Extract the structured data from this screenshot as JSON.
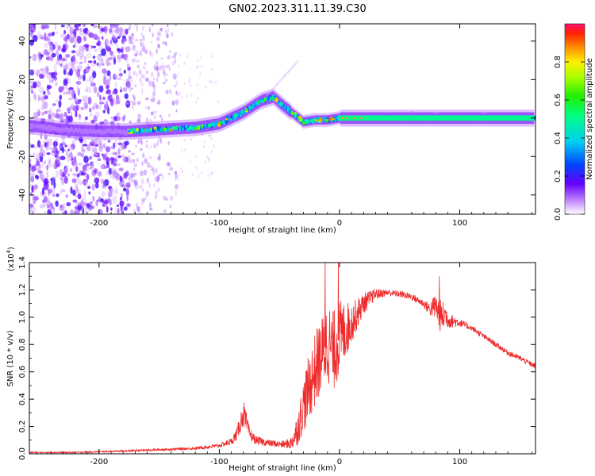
{
  "title": "GN02.2023.311.11.39.C30",
  "colors": {
    "snr_line": "#ee2a2a",
    "spectrogram_noise": "#8a3cf0",
    "signal_core": "#00e060"
  },
  "chart_data": [
    {
      "id": "spectrogram",
      "type": "heatmap",
      "xlabel": "Height of straight line (km)",
      "ylabel": "Frequency (Hz)",
      "xlim": [
        -258,
        163
      ],
      "ylim": [
        -50,
        49
      ],
      "xticks": [
        -200,
        -100,
        0,
        100
      ],
      "yticks": [
        -40,
        -20,
        0,
        20,
        40
      ],
      "grid": false,
      "colorbar": {
        "label": "Normalized spectral amplitude",
        "range": [
          0,
          1
        ],
        "ticks": [
          0.0,
          0.2,
          0.4,
          0.6,
          0.8
        ],
        "tick_labels": [
          "0.0",
          "0.2",
          "0.4",
          "0.6",
          "0.8"
        ],
        "colormap": "rainbow-purple-to-red"
      },
      "signal_ridge": {
        "x": [
          -258,
          -230,
          -200,
          -175,
          -150,
          -120,
          -100,
          -80,
          -65,
          -55,
          -48,
          -40,
          -30,
          -20,
          -10,
          0,
          40,
          80,
          120,
          163
        ],
        "y": [
          -4,
          -6,
          -7,
          -7,
          -6,
          -5,
          -3,
          3,
          9,
          11,
          7,
          3,
          -2,
          -1,
          -1,
          0,
          0,
          0,
          0,
          0
        ],
        "peak_amplitude": 0.9
      },
      "noise_region_x": [
        -258,
        -175
      ],
      "scatter_region_x": [
        -175,
        -135
      ]
    },
    {
      "id": "snr",
      "type": "line",
      "xlabel": "Height of straight line (km)",
      "ylabel": "SNR (10 * v/v)",
      "scale_label": "(x10",
      "scale_exponent": "4",
      "xlim": [
        -258,
        163
      ],
      "ylim": [
        0,
        1.4
      ],
      "xticks": [
        -200,
        -100,
        0,
        100
      ],
      "yticks": [
        0.0,
        0.2,
        0.4,
        0.6,
        0.8,
        1.0,
        1.2,
        1.4
      ],
      "ytick_labels": [
        "0.0",
        "0.2",
        "0.4",
        "0.6",
        "0.8",
        "1.0",
        "1.2",
        "1.4"
      ],
      "grid": false,
      "envelope": {
        "x": [
          -258,
          -220,
          -180,
          -150,
          -120,
          -100,
          -90,
          -85,
          -80,
          -75,
          -70,
          -65,
          -60,
          -50,
          -45,
          -40,
          -35,
          -30,
          -25,
          -20,
          -15,
          -10,
          -5,
          0,
          10,
          20,
          30,
          40,
          50,
          60,
          70,
          75,
          80,
          83,
          85,
          88,
          90,
          100,
          110,
          120,
          130,
          140,
          150,
          163
        ],
        "y": [
          0.01,
          0.01,
          0.02,
          0.03,
          0.04,
          0.06,
          0.09,
          0.15,
          0.3,
          0.15,
          0.1,
          0.09,
          0.08,
          0.07,
          0.07,
          0.08,
          0.18,
          0.35,
          0.5,
          0.62,
          0.72,
          0.82,
          0.75,
          0.85,
          0.96,
          1.1,
          1.17,
          1.18,
          1.17,
          1.15,
          1.1,
          1.06,
          1.08,
          1.02,
          1.0,
          1.02,
          0.98,
          0.96,
          0.92,
          0.86,
          0.8,
          0.74,
          0.7,
          0.64
        ],
        "noise": [
          0.004,
          0.005,
          0.006,
          0.008,
          0.01,
          0.015,
          0.025,
          0.05,
          0.1,
          0.05,
          0.03,
          0.03,
          0.025,
          0.025,
          0.03,
          0.05,
          0.12,
          0.2,
          0.25,
          0.28,
          0.28,
          0.3,
          0.3,
          0.28,
          0.15,
          0.08,
          0.04,
          0.025,
          0.025,
          0.025,
          0.03,
          0.05,
          0.1,
          0.12,
          0.12,
          0.1,
          0.06,
          0.03,
          0.02,
          0.02,
          0.02,
          0.02,
          0.02,
          0.02
        ]
      },
      "spikes": [
        {
          "x": -1,
          "y": 1.42
        },
        {
          "x": -12,
          "y": 1.4
        },
        {
          "x": 83,
          "y": 1.3
        }
      ]
    }
  ]
}
